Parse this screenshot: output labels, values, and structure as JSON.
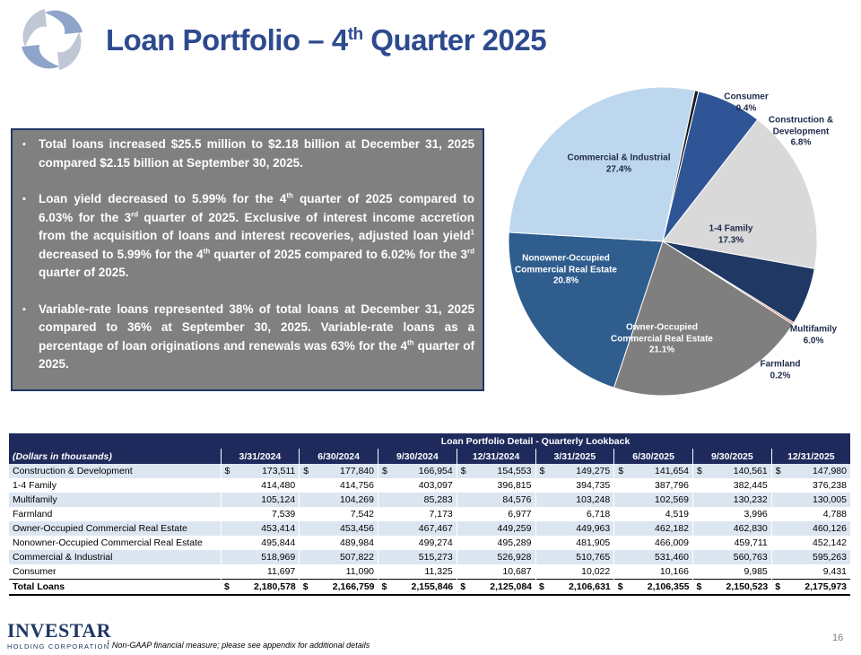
{
  "header": {
    "title": [
      "Loan Portfolio – 4",
      {
        "sup": "th"
      },
      " Quarter 2025"
    ]
  },
  "bullets": [
    [
      "Total loans increased $25.5 million to $2.18 billion at December 31, 2025 compared $2.15 billion at September 30, 2025."
    ],
    [
      "Loan yield decreased to 5.99% for the 4",
      {
        "sup": "th"
      },
      " quarter of 2025 compared to 6.03% for the 3",
      {
        "sup": "rd"
      },
      " quarter of 2025. Exclusive of interest income accretion from the acquisition of loans and interest recoveries, adjusted loan yield",
      {
        "sup": "1"
      },
      " decreased to 5.99% for the 4",
      {
        "sup": "th"
      },
      " quarter of 2025 compared to 6.02% for the 3",
      {
        "sup": "rd"
      },
      " quarter of 2025."
    ],
    [
      "Variable-rate loans represented 38% of total loans at December 31, 2025 compared to 36% at September 30, 2025. Variable-rate loans as a percentage of loan originations and renewals was 63% for the 4",
      {
        "sup": "th"
      },
      " quarter of 2025."
    ]
  ],
  "chart_data": {
    "type": "pie",
    "categories": [
      "Consumer",
      "Construction & Development",
      "1-4 Family",
      "Multifamily",
      "Farmland",
      "Owner-Occupied Commercial Real Estate",
      "Nonowner-Occupied Commercial Real Estate",
      "Commercial & Industrial"
    ],
    "values": [
      0.4,
      6.8,
      17.3,
      6.0,
      0.2,
      21.1,
      20.8,
      27.4
    ],
    "value_labels": [
      "0.4%",
      "6.8%",
      "17.3%",
      "6.0%",
      "0.2%",
      "21.1%",
      "20.8%",
      "27.4%"
    ],
    "colors": [
      "#1a1a1a",
      "#2f5597",
      "#d9d9d9",
      "#1f3864",
      "#e07a5f",
      "#7f7f7f",
      "#2e5d8e",
      "#bdd7ee"
    ]
  },
  "table": {
    "title": "Loan Portfolio Detail - Quarterly Lookback",
    "units": "(Dollars in thousands)",
    "columns": [
      "3/31/2024",
      "6/30/2024",
      "9/30/2024",
      "12/31/2024",
      "3/31/2025",
      "6/30/2025",
      "9/30/2025",
      "12/31/2025"
    ],
    "rows": [
      {
        "label": "Construction & Development",
        "dollar": "$",
        "values": [
          "173,511",
          "177,840",
          "166,954",
          "154,553",
          "149,275",
          "141,654",
          "140,561",
          "147,980"
        ]
      },
      {
        "label": "1-4 Family",
        "values": [
          "414,480",
          "414,756",
          "403,097",
          "396,815",
          "394,735",
          "387,796",
          "382,445",
          "376,238"
        ]
      },
      {
        "label": "Multifamily",
        "values": [
          "105,124",
          "104,269",
          "85,283",
          "84,576",
          "103,248",
          "102,569",
          "130,232",
          "130,005"
        ]
      },
      {
        "label": "Farmland",
        "values": [
          "7,539",
          "7,542",
          "7,173",
          "6,977",
          "6,718",
          "4,519",
          "3,996",
          "4,788"
        ]
      },
      {
        "label": "Owner-Occupied Commercial Real Estate",
        "values": [
          "453,414",
          "453,456",
          "467,467",
          "449,259",
          "449,963",
          "462,182",
          "462,830",
          "460,126"
        ]
      },
      {
        "label": "Nonowner-Occupied Commercial Real Estate",
        "values": [
          "495,844",
          "489,984",
          "499,274",
          "495,289",
          "481,905",
          "466,009",
          "459,711",
          "452,142"
        ]
      },
      {
        "label": "Commercial & Industrial",
        "values": [
          "518,969",
          "507,822",
          "515,273",
          "526,928",
          "510,765",
          "531,460",
          "560,763",
          "595,263"
        ]
      },
      {
        "label": "Consumer",
        "values": [
          "11,697",
          "11,090",
          "11,325",
          "10,687",
          "10,022",
          "10,166",
          "9,985",
          "9,431"
        ]
      },
      {
        "label": "Total Loans",
        "dollar": "$",
        "values": [
          "2,180,578",
          "2,166,759",
          "2,155,846",
          "2,125,084",
          "2,106,631",
          "2,106,355",
          "2,150,523",
          "2,175,973"
        ]
      }
    ]
  },
  "footer": {
    "logo": "INVESTAR",
    "logo_sub": "HOLDING CORPORATION",
    "footnote_mark": "1",
    "footnote": "Non-GAAP financial measure; please see appendix for additional details",
    "page": "16"
  }
}
